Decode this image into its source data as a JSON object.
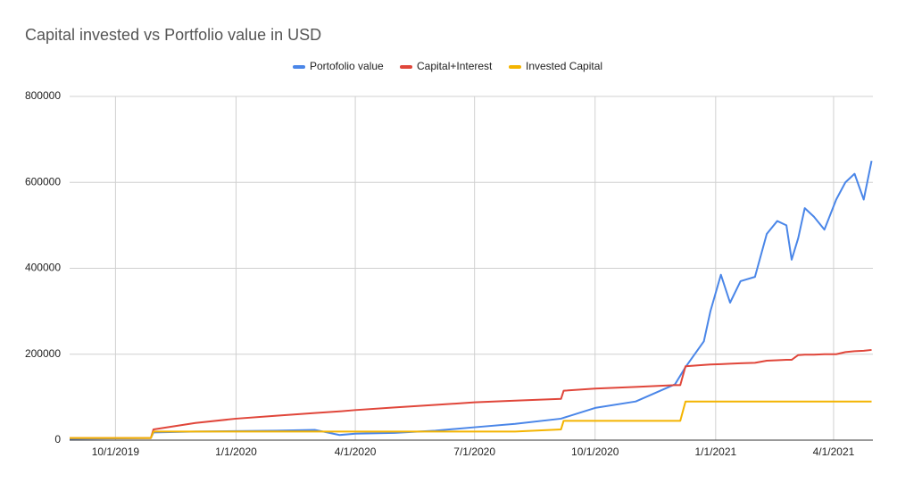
{
  "chart_data": {
    "type": "line",
    "title": "Capital invested vs Portfolio value in USD",
    "x": [
      "8/27/2019",
      "10/28/2019",
      "10/30/2019",
      "12/1/2019",
      "1/1/2020",
      "2/1/2020",
      "3/1/2020",
      "3/20/2020",
      "4/1/2020",
      "5/1/2020",
      "6/1/2020",
      "7/1/2020",
      "8/1/2020",
      "9/5/2020",
      "9/7/2020",
      "10/1/2020",
      "11/1/2020",
      "12/1/2020",
      "12/5/2020",
      "12/9/2020",
      "12/23/2020",
      "12/28/2020",
      "1/5/2021",
      "1/12/2021",
      "1/20/2021",
      "1/31/2021",
      "2/9/2021",
      "2/17/2021",
      "2/24/2021",
      "2/28/2021",
      "3/5/2021",
      "3/10/2021",
      "3/17/2021",
      "3/25/2021",
      "4/3/2021",
      "4/10/2021",
      "4/17/2021",
      "4/24/2021",
      "4/30/2021"
    ],
    "series": [
      {
        "name": "Portofolio value",
        "color": "#4a86e8",
        "values": [
          3000,
          5000,
          18000,
          20000,
          21000,
          22000,
          24000,
          12000,
          15000,
          17000,
          22000,
          30000,
          38000,
          50000,
          52000,
          75000,
          90000,
          130000,
          150000,
          170000,
          230000,
          300000,
          385000,
          320000,
          370000,
          380000,
          480000,
          510000,
          500000,
          420000,
          470000,
          540000,
          520000,
          490000,
          560000,
          600000,
          620000,
          560000,
          650000
        ]
      },
      {
        "name": "Capital+Interest",
        "color": "#e0463a",
        "values": [
          5000,
          5000,
          25000,
          40000,
          50000,
          57000,
          63000,
          67000,
          70000,
          76000,
          82000,
          88000,
          92000,
          96000,
          115000,
          120000,
          124000,
          128000,
          128000,
          172000,
          175000,
          176000,
          177000,
          178000,
          179000,
          180000,
          185000,
          186000,
          187000,
          187000,
          198000,
          199000,
          199000,
          200000,
          200000,
          205000,
          207000,
          208000,
          210000
        ]
      },
      {
        "name": "Invested Capital",
        "color": "#f4b400",
        "values": [
          5000,
          5000,
          20000,
          20000,
          20000,
          20000,
          20000,
          20000,
          20000,
          20000,
          20000,
          20000,
          20000,
          25000,
          45000,
          45000,
          45000,
          45000,
          45000,
          90000,
          90000,
          90000,
          90000,
          90000,
          90000,
          90000,
          90000,
          90000,
          90000,
          90000,
          90000,
          90000,
          90000,
          90000,
          90000,
          90000,
          90000,
          90000,
          90000
        ]
      }
    ],
    "xlim": [
      "8/27/2019",
      "5/1/2021"
    ],
    "xticks": [
      "10/1/2019",
      "1/1/2020",
      "4/1/2020",
      "7/1/2020",
      "10/1/2020",
      "1/1/2021",
      "4/1/2021"
    ],
    "ylim": [
      0,
      800000
    ],
    "yticks": [
      0,
      200000,
      400000,
      600000,
      800000
    ],
    "grid": true,
    "legend": "top"
  }
}
